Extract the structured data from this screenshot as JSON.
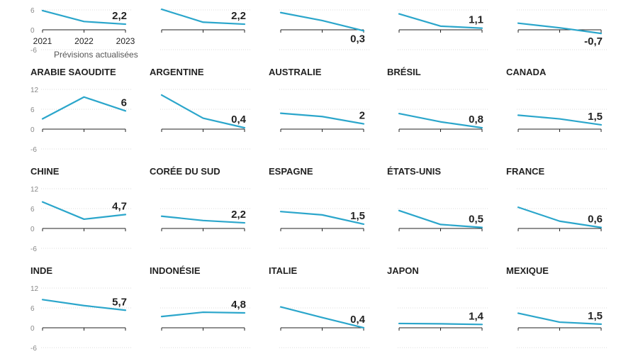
{
  "colors": {
    "line": "#2ba6cb",
    "axis": "#222222",
    "grid": "#d0d0d0",
    "tick": "#888888",
    "label": "#222222"
  },
  "legend": {
    "x_ticks": [
      "2021",
      "2022",
      "2023"
    ],
    "caption": "Prévisions actualisées"
  },
  "chart_data": [
    {
      "type": "line",
      "title": "",
      "x": [
        "2021",
        "2022",
        "2023"
      ],
      "values": [
        5.8,
        2.5,
        1.7
      ],
      "end_label": "2,2",
      "ylim": [
        -6,
        12
      ],
      "y_ticks": [
        -6,
        0,
        6,
        12
      ]
    },
    {
      "type": "line",
      "title": "",
      "x": [
        "2021",
        "2022",
        "2023"
      ],
      "values": [
        6.2,
        2.3,
        1.7
      ],
      "end_label": "2,2",
      "ylim": [
        -6,
        12
      ],
      "y_ticks": [
        -6,
        0,
        6,
        12
      ]
    },
    {
      "type": "line",
      "title": "",
      "x": [
        "2021",
        "2022",
        "2023"
      ],
      "values": [
        5.2,
        2.8,
        -0.3
      ],
      "end_label": "0,3",
      "ylim": [
        -6,
        12
      ],
      "y_ticks": [
        -6,
        0,
        6,
        12
      ]
    },
    {
      "type": "line",
      "title": "",
      "x": [
        "2021",
        "2022",
        "2023"
      ],
      "values": [
        4.8,
        1.1,
        0.5
      ],
      "end_label": "1,1",
      "ylim": [
        -6,
        12
      ],
      "y_ticks": [
        -6,
        0,
        6,
        12
      ]
    },
    {
      "type": "line",
      "title": "",
      "x": [
        "2021",
        "2022",
        "2023"
      ],
      "values": [
        2.0,
        0.6,
        -1.1
      ],
      "end_label": "-0,7",
      "ylim": [
        -6,
        12
      ],
      "y_ticks": [
        -6,
        0,
        6,
        12
      ]
    },
    {
      "type": "line",
      "title": "ARABIE SAOUDITE",
      "x": [
        "2021",
        "2022",
        "2023"
      ],
      "values": [
        3.1,
        9.7,
        5.5
      ],
      "end_label": "6",
      "ylim": [
        -6,
        12
      ],
      "y_ticks": [
        -6,
        0,
        6,
        12
      ]
    },
    {
      "type": "line",
      "title": "ARGENTINE",
      "x": [
        "2021",
        "2022",
        "2023"
      ],
      "values": [
        10.3,
        3.3,
        0.4
      ],
      "end_label": "0,4",
      "ylim": [
        -6,
        12
      ],
      "y_ticks": [
        -6,
        0,
        6,
        12
      ]
    },
    {
      "type": "line",
      "title": "AUSTRALIE",
      "x": [
        "2021",
        "2022",
        "2023"
      ],
      "values": [
        4.8,
        3.8,
        1.6
      ],
      "end_label": "2",
      "ylim": [
        -6,
        12
      ],
      "y_ticks": [
        -6,
        0,
        6,
        12
      ]
    },
    {
      "type": "line",
      "title": "BRÉSIL",
      "x": [
        "2021",
        "2022",
        "2023"
      ],
      "values": [
        4.7,
        2.2,
        0.4
      ],
      "end_label": "0,8",
      "ylim": [
        -6,
        12
      ],
      "y_ticks": [
        -6,
        0,
        6,
        12
      ]
    },
    {
      "type": "line",
      "title": "CANADA",
      "x": [
        "2021",
        "2022",
        "2023"
      ],
      "values": [
        4.2,
        3.1,
        1.3
      ],
      "end_label": "1,5",
      "ylim": [
        -6,
        12
      ],
      "y_ticks": [
        -6,
        0,
        6,
        12
      ]
    },
    {
      "type": "line",
      "title": "CHINE",
      "x": [
        "2021",
        "2022",
        "2023"
      ],
      "values": [
        8.0,
        2.8,
        4.2
      ],
      "end_label": "4,7",
      "ylim": [
        -6,
        12
      ],
      "y_ticks": [
        -6,
        0,
        6,
        12
      ]
    },
    {
      "type": "line",
      "title": "CORÉE DU SUD",
      "x": [
        "2021",
        "2022",
        "2023"
      ],
      "values": [
        3.7,
        2.4,
        1.7
      ],
      "end_label": "2,2",
      "ylim": [
        -6,
        12
      ],
      "y_ticks": [
        -6,
        0,
        6,
        12
      ]
    },
    {
      "type": "line",
      "title": "ESPAGNE",
      "x": [
        "2021",
        "2022",
        "2023"
      ],
      "values": [
        5.1,
        4.1,
        1.3
      ],
      "end_label": "1,5",
      "ylim": [
        -6,
        12
      ],
      "y_ticks": [
        -6,
        0,
        6,
        12
      ]
    },
    {
      "type": "line",
      "title": "ÉTATS-UNIS",
      "x": [
        "2021",
        "2022",
        "2023"
      ],
      "values": [
        5.4,
        1.2,
        0.3
      ],
      "end_label": "0,5",
      "ylim": [
        -6,
        12
      ],
      "y_ticks": [
        -6,
        0,
        6,
        12
      ]
    },
    {
      "type": "line",
      "title": "FRANCE",
      "x": [
        "2021",
        "2022",
        "2023"
      ],
      "values": [
        6.4,
        2.2,
        0.3
      ],
      "end_label": "0,6",
      "ylim": [
        -6,
        12
      ],
      "y_ticks": [
        -6,
        0,
        6,
        12
      ]
    },
    {
      "type": "line",
      "title": "INDE",
      "x": [
        "2021",
        "2022",
        "2023"
      ],
      "values": [
        8.5,
        6.7,
        5.3
      ],
      "end_label": "5,7",
      "ylim": [
        -6,
        12
      ],
      "y_ticks": [
        -6,
        0,
        6,
        12
      ]
    },
    {
      "type": "line",
      "title": "INDONÉSIE",
      "x": [
        "2021",
        "2022",
        "2023"
      ],
      "values": [
        3.4,
        4.7,
        4.5
      ],
      "end_label": "4,8",
      "ylim": [
        -6,
        12
      ],
      "y_ticks": [
        -6,
        0,
        6,
        12
      ]
    },
    {
      "type": "line",
      "title": "ITALIE",
      "x": [
        "2021",
        "2022",
        "2023"
      ],
      "values": [
        6.3,
        3.1,
        0.0
      ],
      "end_label": "0,4",
      "ylim": [
        -6,
        12
      ],
      "y_ticks": [
        -6,
        0,
        6,
        12
      ]
    },
    {
      "type": "line",
      "title": "JAPON",
      "x": [
        "2021",
        "2022",
        "2023"
      ],
      "values": [
        1.3,
        1.2,
        1.0
      ],
      "end_label": "1,4",
      "ylim": [
        -6,
        12
      ],
      "y_ticks": [
        -6,
        0,
        6,
        12
      ]
    },
    {
      "type": "line",
      "title": "MEXIQUE",
      "x": [
        "2021",
        "2022",
        "2023"
      ],
      "values": [
        4.4,
        1.7,
        1.1
      ],
      "end_label": "1,5",
      "ylim": [
        -6,
        12
      ],
      "y_ticks": [
        -6,
        0,
        6,
        12
      ]
    }
  ]
}
